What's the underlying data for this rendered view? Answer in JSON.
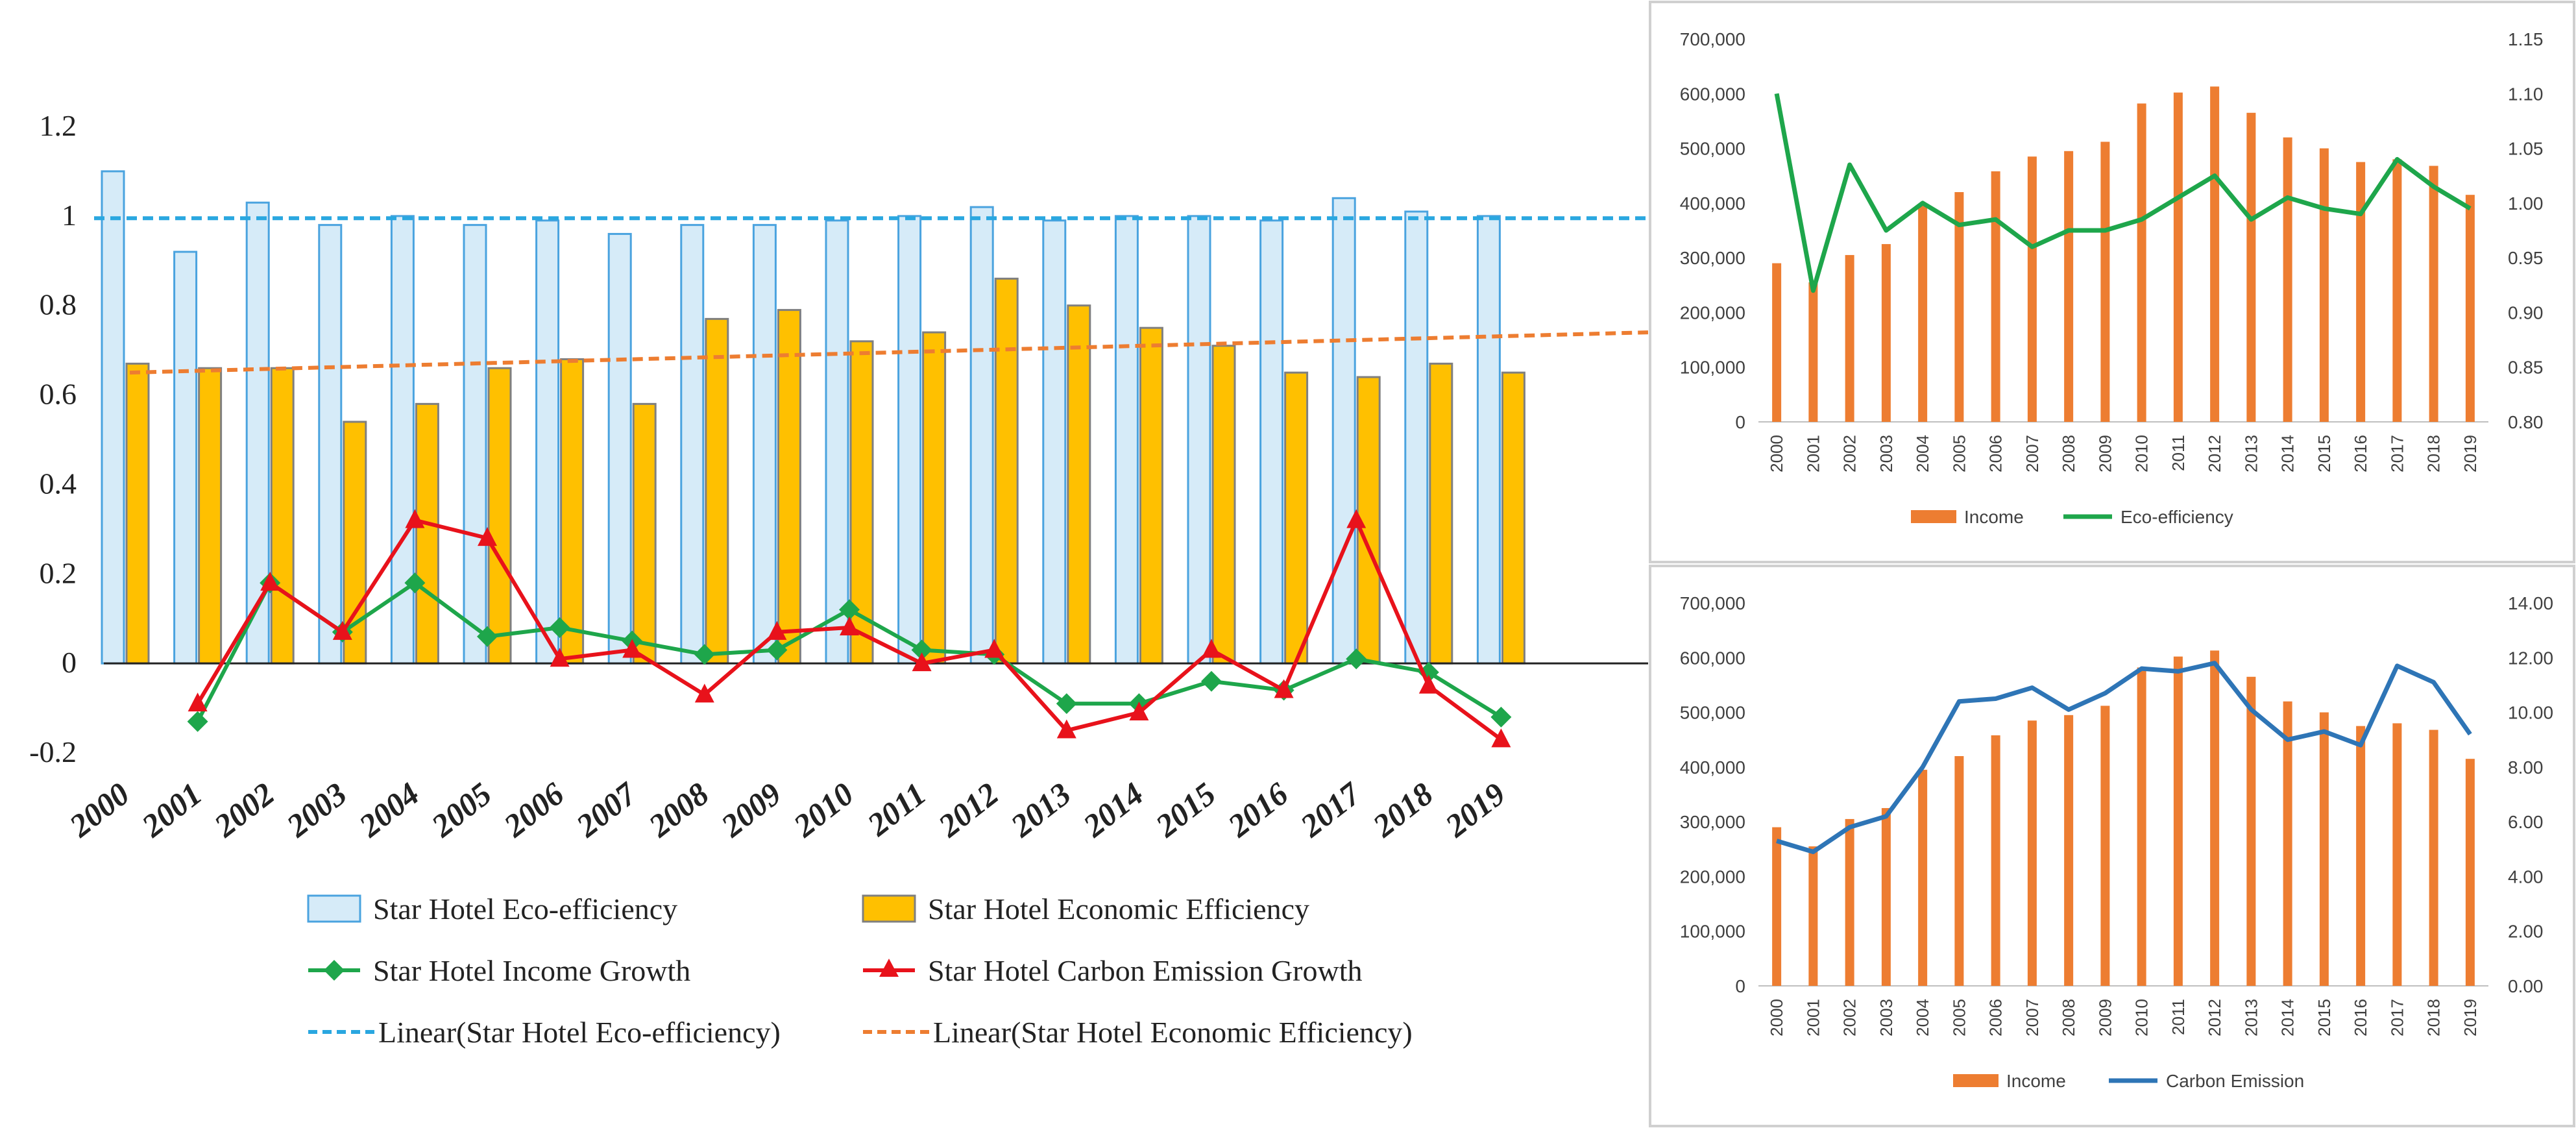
{
  "chart_data": [
    {
      "type": "bar",
      "title": "",
      "xlabel": "",
      "ylabel": "",
      "ylim": [
        -0.2,
        1.2
      ],
      "yticks": [
        "-0.2",
        "0",
        "0.2",
        "0.4",
        "0.6",
        "0.8",
        "1",
        "1.2"
      ],
      "categories": [
        "2000",
        "2001",
        "2002",
        "2003",
        "2004",
        "2005",
        "2006",
        "2007",
        "2008",
        "2009",
        "2010",
        "2011",
        "2012",
        "2013",
        "2014",
        "2015",
        "2016",
        "2017",
        "2018",
        "2019"
      ],
      "series": [
        {
          "name": "Star Hotel Eco-efficiency",
          "kind": "bar",
          "color": "#d6ebf8",
          "stroke": "#4aa3df",
          "values": [
            1.1,
            0.92,
            1.03,
            0.98,
            1.0,
            0.98,
            0.99,
            0.96,
            0.98,
            0.98,
            0.99,
            1.0,
            1.02,
            0.99,
            1.0,
            1.0,
            0.99,
            1.04,
            1.01,
            1.0
          ]
        },
        {
          "name": "Star Hotel Economic Efficiency",
          "kind": "bar",
          "color": "#ffc000",
          "stroke": "#7f7f7f",
          "values": [
            0.67,
            0.66,
            0.66,
            0.54,
            0.58,
            0.66,
            0.68,
            0.58,
            0.77,
            0.79,
            0.72,
            0.74,
            0.86,
            0.8,
            0.75,
            0.71,
            0.65,
            0.64,
            0.67,
            0.65
          ]
        },
        {
          "name": "Star Hotel Income Growth",
          "kind": "line",
          "marker": "diamond",
          "color": "#1ea64b",
          "values": [
            null,
            -0.13,
            0.18,
            0.07,
            0.18,
            0.06,
            0.08,
            0.05,
            0.02,
            0.03,
            0.12,
            0.03,
            0.02,
            -0.09,
            -0.09,
            -0.04,
            -0.06,
            0.01,
            -0.02,
            -0.12
          ]
        },
        {
          "name": "Star Hotel Carbon Emission Growth",
          "kind": "line",
          "marker": "triangle",
          "color": "#e8121b",
          "values": [
            null,
            -0.09,
            0.18,
            0.07,
            0.32,
            0.28,
            0.01,
            0.03,
            -0.07,
            0.07,
            0.08,
            0.0,
            0.03,
            -0.15,
            -0.11,
            0.03,
            -0.06,
            0.32,
            -0.05,
            -0.17
          ]
        },
        {
          "name": "Linear(Star Hotel Eco-efficiency)",
          "kind": "trend",
          "color": "#2aa7e0",
          "start": 0.995,
          "end": 0.995
        },
        {
          "name": "Linear(Star Hotel Economic Efficiency)",
          "kind": "trend",
          "color": "#ed7d31",
          "start": 0.65,
          "end": 0.74
        }
      ],
      "legend": "bottom"
    },
    {
      "type": "bar",
      "title": "",
      "categories": [
        "2000",
        "2001",
        "2002",
        "2003",
        "2004",
        "2005",
        "2006",
        "2007",
        "2008",
        "2009",
        "2010",
        "2011",
        "2012",
        "2013",
        "2014",
        "2015",
        "2016",
        "2017",
        "2018",
        "2019"
      ],
      "y_left": {
        "range": [
          0,
          700000
        ],
        "ticks": [
          "0",
          "100,000",
          "200,000",
          "300,000",
          "400,000",
          "500,000",
          "600,000",
          "700,000"
        ]
      },
      "y_right": {
        "range": [
          0.8,
          1.15
        ],
        "ticks": [
          "0.80",
          "0.85",
          "0.90",
          "0.95",
          "1.00",
          "1.05",
          "1.10",
          "1.15"
        ]
      },
      "series": [
        {
          "name": "Income",
          "kind": "bar",
          "axis": "left",
          "color": "#ed7d31",
          "values": [
            290000,
            255000,
            305000,
            325000,
            395000,
            420000,
            458000,
            485000,
            495000,
            512000,
            582000,
            602000,
            613000,
            565000,
            520000,
            500000,
            475000,
            480000,
            468000,
            415000
          ]
        },
        {
          "name": "Eco-efficiency",
          "kind": "line",
          "axis": "right",
          "color": "#1ea64b",
          "values": [
            1.1,
            0.92,
            1.035,
            0.975,
            1.0,
            0.98,
            0.985,
            0.96,
            0.975,
            0.975,
            0.985,
            1.005,
            1.025,
            0.985,
            1.005,
            0.995,
            0.99,
            1.04,
            1.015,
            0.995
          ]
        }
      ],
      "legend": "bottom"
    },
    {
      "type": "bar",
      "title": "",
      "categories": [
        "2000",
        "2001",
        "2002",
        "2003",
        "2004",
        "2005",
        "2006",
        "2007",
        "2008",
        "2009",
        "2010",
        "2011",
        "2012",
        "2013",
        "2014",
        "2015",
        "2016",
        "2017",
        "2018",
        "2019"
      ],
      "y_left": {
        "range": [
          0,
          700000
        ],
        "ticks": [
          "0",
          "100,000",
          "200,000",
          "300,000",
          "400,000",
          "500,000",
          "600,000",
          "700,000"
        ]
      },
      "y_right": {
        "range": [
          0,
          14
        ],
        "ticks": [
          "0.00",
          "2.00",
          "4.00",
          "6.00",
          "8.00",
          "10.00",
          "12.00",
          "14.00"
        ]
      },
      "series": [
        {
          "name": "Income",
          "kind": "bar",
          "axis": "left",
          "color": "#ed7d31",
          "values": [
            290000,
            255000,
            305000,
            325000,
            395000,
            420000,
            458000,
            485000,
            495000,
            512000,
            582000,
            602000,
            613000,
            565000,
            520000,
            500000,
            475000,
            480000,
            468000,
            415000
          ]
        },
        {
          "name": "Carbon Emission",
          "kind": "line",
          "axis": "right",
          "color": "#2e75b6",
          "values": [
            5.3,
            4.9,
            5.8,
            6.2,
            8.0,
            10.4,
            10.5,
            10.9,
            10.1,
            10.7,
            11.6,
            11.5,
            11.8,
            10.1,
            9.0,
            9.3,
            8.8,
            11.7,
            11.1,
            9.2
          ]
        }
      ],
      "legend": "bottom"
    }
  ]
}
